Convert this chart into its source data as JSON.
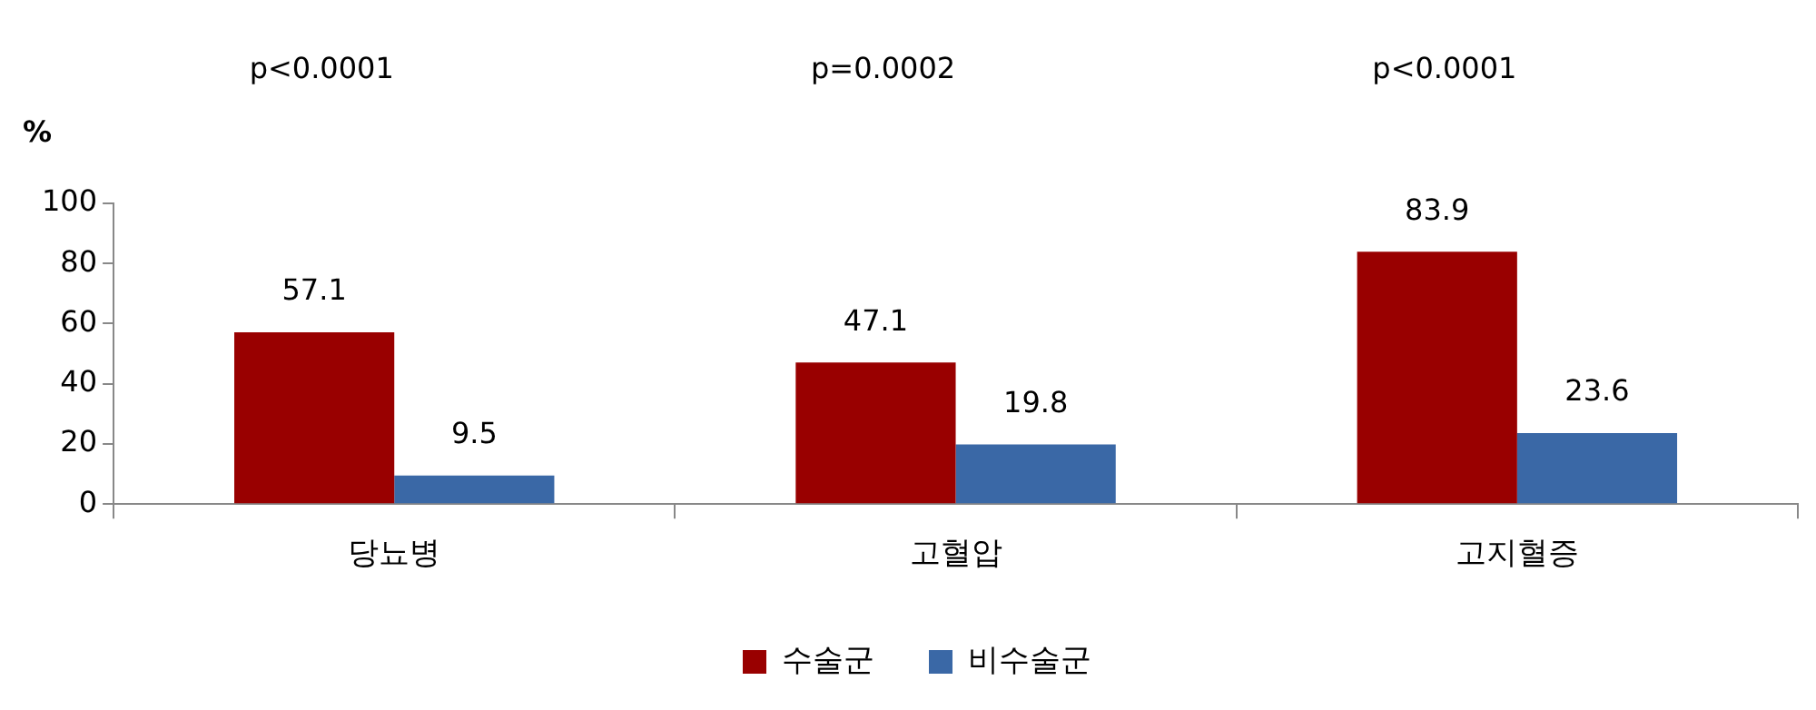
{
  "chart_data": {
    "type": "bar",
    "ylabel": "%",
    "categories": [
      "당뇨병",
      "고혈압",
      "고지혈증"
    ],
    "series": [
      {
        "name": "수술군",
        "color": "#990000",
        "values": [
          57.1,
          47.1,
          83.9
        ]
      },
      {
        "name": "비수술군",
        "color": "#3a68a6",
        "values": [
          9.5,
          19.8,
          23.6
        ]
      }
    ],
    "ylim": [
      0,
      100
    ],
    "yticks": [
      0,
      20,
      40,
      60,
      80,
      100
    ],
    "grid": false,
    "legend": "bottom",
    "data_labels": true,
    "annotations": [
      "p<0.0001",
      "p=0.0002",
      "p<0.0001"
    ]
  }
}
